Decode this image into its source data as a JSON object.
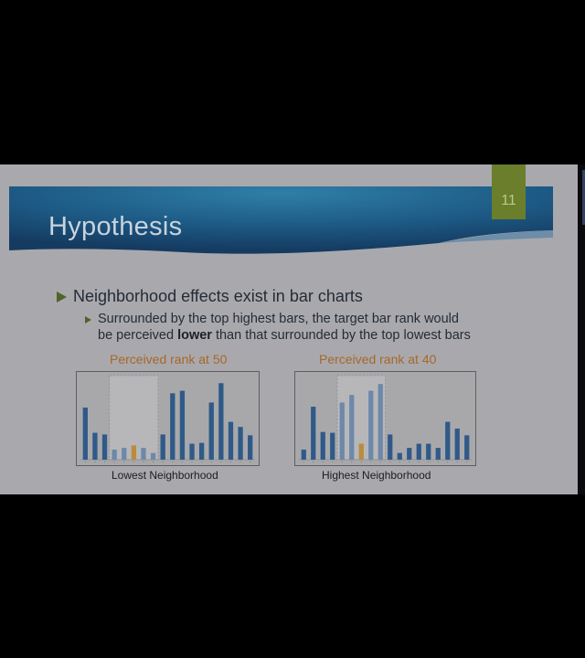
{
  "slide": {
    "title": "Hypothesis",
    "number": "11",
    "bullet_main": "Neighborhood effects exist in bar charts",
    "bullet_sub_line1": "Surrounded by the top highest bars, the target bar rank would",
    "bullet_sub_line2_before": "be perceived ",
    "bullet_sub_line2_bold": "lower",
    "bullet_sub_line2_after": " than that surrounded by the top lowest bars"
  },
  "colors": {
    "bar_blue": "#2f5a88",
    "bar_faded": "#6d88a8",
    "bar_target": "#b98c3e",
    "caption": "#a8662a",
    "accent_green": "#6a7e2c"
  },
  "chart_data": [
    {
      "type": "bar",
      "title": "Perceived rank at 50",
      "xlabel": "Lowest Neighborhood",
      "values": [
        62,
        32,
        30,
        12,
        14,
        17,
        14,
        8,
        30,
        79,
        82,
        19,
        20,
        68,
        91,
        45,
        39,
        29
      ],
      "highlight_range": [
        3,
        7
      ],
      "target_index": 5,
      "ylim": [
        0,
        100
      ]
    },
    {
      "type": "bar",
      "title": "Perceived rank at 40",
      "xlabel": "Highest Neighborhood",
      "values": [
        12,
        63,
        33,
        32,
        68,
        77,
        19,
        82,
        90,
        30,
        8,
        14,
        19,
        19,
        14,
        45,
        37,
        29
      ],
      "highlight_range": [
        4,
        8
      ],
      "target_index": 6,
      "ylim": [
        0,
        100
      ]
    }
  ]
}
